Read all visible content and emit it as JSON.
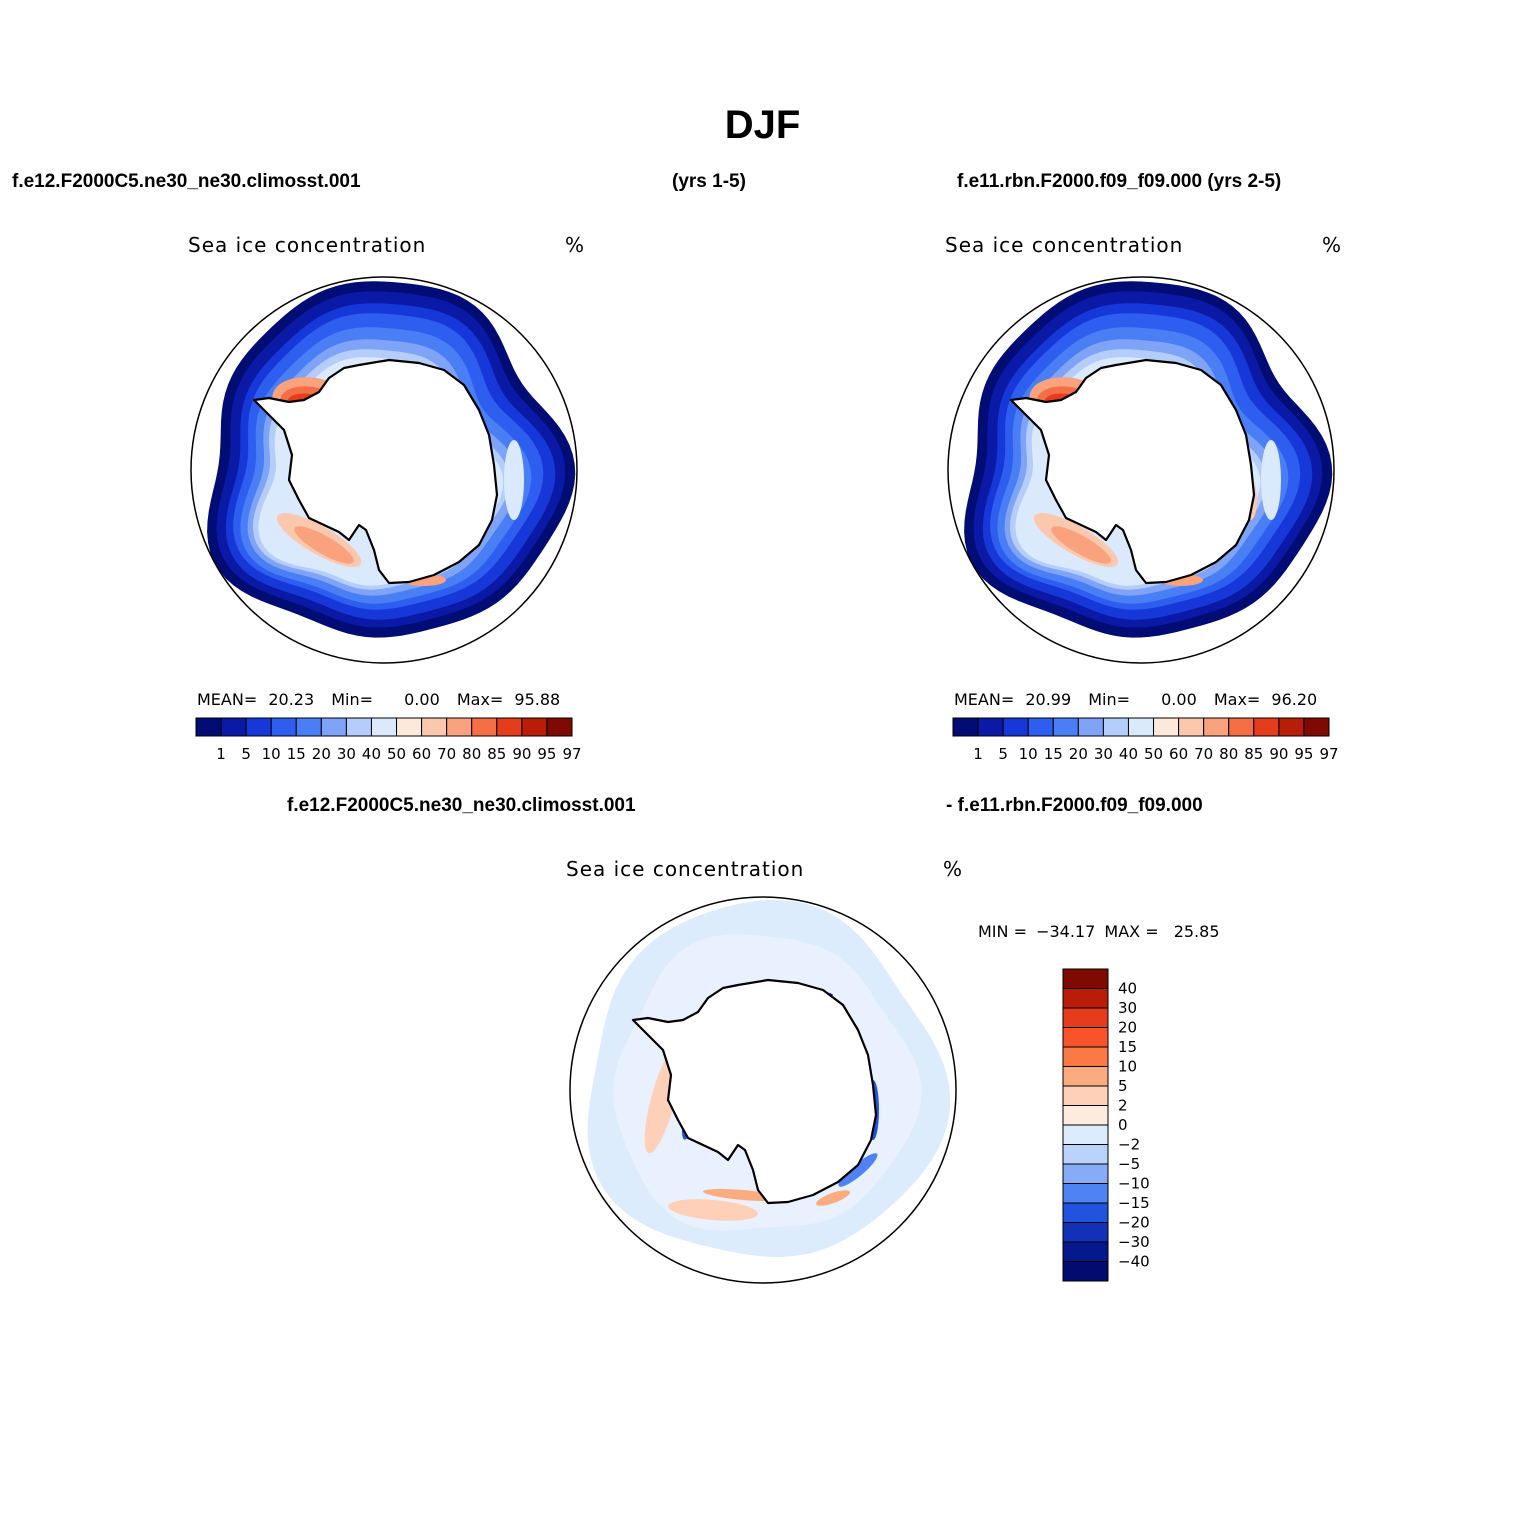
{
  "figure": {
    "title": "DJF",
    "case_a_left": "f.e12.F2000C5.ne30_ne30.climosst.001",
    "case_a_right": "(yrs 1-5)",
    "case_b": "f.e11.rbn.F2000.f09_f09.000 (yrs 2-5)",
    "diff_left": "f.e12.F2000C5.ne30_ne30.climosst.001",
    "diff_right": "- f.e11.rbn.F2000.f09_f09.000"
  },
  "chart_data": [
    {
      "type": "heatmap",
      "projection": "south-polar-stereographic",
      "title": "Sea ice concentration",
      "units": "%",
      "mean_label": "MEAN=",
      "mean": "20.23",
      "min_label": "Min=",
      "min": "0.00",
      "max_label": "Max=",
      "max": "95.88",
      "levels": [
        "1",
        "5",
        "10",
        "15",
        "20",
        "30",
        "40",
        "50",
        "60",
        "70",
        "80",
        "85",
        "90",
        "95",
        "97"
      ],
      "colors": [
        "#020c75",
        "#0a1aa6",
        "#1738d8",
        "#2e5ef0",
        "#4a7ef5",
        "#7ea3f7",
        "#b4cdfa",
        "#dbe9fd",
        "#fde9dc",
        "#fbc8ad",
        "#f9a27d",
        "#f46f45",
        "#e53c1c",
        "#b81e07",
        "#7e0a02"
      ]
    },
    {
      "type": "heatmap",
      "projection": "south-polar-stereographic",
      "title": "Sea ice concentration",
      "units": "%",
      "mean_label": "MEAN=",
      "mean": "20.99",
      "min_label": "Min=",
      "min": "0.00",
      "max_label": "Max=",
      "max": "96.20",
      "levels": [
        "1",
        "5",
        "10",
        "15",
        "20",
        "30",
        "40",
        "50",
        "60",
        "70",
        "80",
        "85",
        "90",
        "95",
        "97"
      ],
      "colors": [
        "#020c75",
        "#0a1aa6",
        "#1738d8",
        "#2e5ef0",
        "#4a7ef5",
        "#7ea3f7",
        "#b4cdfa",
        "#dbe9fd",
        "#fde9dc",
        "#fbc8ad",
        "#f9a27d",
        "#f46f45",
        "#e53c1c",
        "#b81e07",
        "#7e0a02"
      ]
    },
    {
      "type": "heatmap",
      "projection": "south-polar-stereographic",
      "title": "Sea ice concentration",
      "units": "%",
      "min_label": "MIN =",
      "min": "−34.17",
      "max_label": "MAX =",
      "max": "25.85",
      "levels": [
        "40",
        "30",
        "20",
        "15",
        "10",
        "5",
        "2",
        "0",
        "−2",
        "−5",
        "−10",
        "−15",
        "−20",
        "−30",
        "−40"
      ],
      "colors": [
        "#7e0a02",
        "#b81e07",
        "#e53c1c",
        "#f9532a",
        "#f97a44",
        "#fbab80",
        "#fdd0b7",
        "#fdebdd",
        "#dcecfd",
        "#b9d3fb",
        "#86acf7",
        "#4f82f2",
        "#2153df",
        "#1230b8",
        "#06198c",
        "#020c6e"
      ]
    }
  ]
}
